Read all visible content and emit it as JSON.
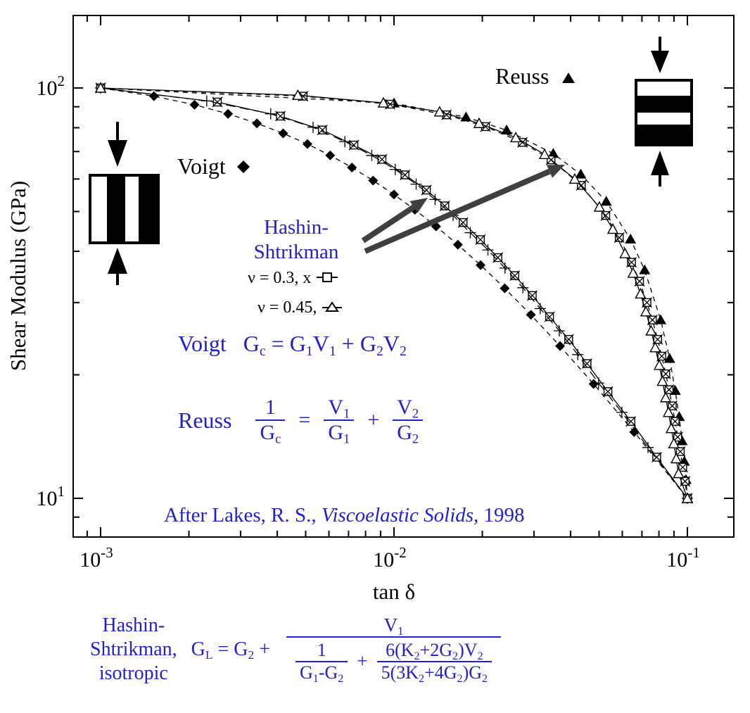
{
  "chart_data": {
    "type": "line",
    "title": "",
    "xlabel": "tan δ",
    "ylabel": "Shear Modulus (GPa)",
    "x_scale": "log",
    "y_scale": "log",
    "xlim": [
      0.0008,
      0.144
    ],
    "ylim": [
      8.1,
      151
    ],
    "grid": false,
    "x_ticks": [
      {
        "value": 0.001,
        "base": "10",
        "exp": "-3"
      },
      {
        "value": 0.01,
        "base": "10",
        "exp": "-2"
      },
      {
        "value": 0.1,
        "base": "10",
        "exp": "-1"
      }
    ],
    "y_ticks": [
      {
        "value": 100,
        "base": "10",
        "exp": "2"
      },
      {
        "value": 10,
        "base": "10",
        "exp": "1"
      }
    ],
    "series": [
      {
        "name": "voigt",
        "label": "Voigt",
        "marker": "filled-diamond",
        "line": "dash",
        "color": "#000000",
        "points": [
          [
            0.001,
            100
          ],
          [
            0.00152,
            95.5
          ],
          [
            0.00209,
            91
          ],
          [
            0.00272,
            86.5
          ],
          [
            0.00341,
            82
          ],
          [
            0.00419,
            77.5
          ],
          [
            0.00507,
            73
          ],
          [
            0.00606,
            68.5
          ],
          [
            0.00719,
            64
          ],
          [
            0.00849,
            59.5
          ],
          [
            0.01,
            55
          ],
          [
            0.01178,
            50.5
          ],
          [
            0.01391,
            46
          ],
          [
            0.01651,
            41.5
          ],
          [
            0.01973,
            37
          ],
          [
            0.02385,
            32.5
          ],
          [
            0.02929,
            28
          ],
          [
            0.03681,
            23.5
          ],
          [
            0.04789,
            19
          ],
          [
            0.06586,
            14.5
          ],
          [
            0.1,
            10
          ]
        ]
      },
      {
        "name": "reuss",
        "label": "Reuss",
        "marker": "filled-triangle",
        "line": "dash",
        "color": "#000000",
        "points": [
          [
            0.001,
            100
          ],
          [
            0.01,
            91.8
          ],
          [
            0.0176,
            84.9
          ],
          [
            0.0242,
            78.9
          ],
          [
            0.0349,
            69.2
          ],
          [
            0.0433,
            61.6
          ],
          [
            0.0529,
            52.9
          ],
          [
            0.064,
            42.8
          ],
          [
            0.0715,
            36
          ],
          [
            0.0811,
            27.2
          ],
          [
            0.087,
            21.9
          ],
          [
            0.0909,
            18.3
          ],
          [
            0.0938,
            15.8
          ],
          [
            0.0959,
            13.8
          ],
          [
            0.0976,
            12.3
          ],
          [
            0.0989,
            11.1
          ],
          [
            0.1,
            10
          ]
        ]
      },
      {
        "name": "hs_upper_nu03",
        "label": "Hashin-Shtrikman upper, ν = 0.3",
        "marker": "x-square",
        "line": "solid",
        "color": "#000000",
        "points": [
          [
            0.001,
            100
          ],
          [
            0.0025,
            92.4
          ],
          [
            0.0041,
            85.4
          ],
          [
            0.0057,
            79
          ],
          [
            0.0073,
            72.6
          ],
          [
            0.0091,
            67
          ],
          [
            0.0109,
            61.4
          ],
          [
            0.0129,
            56.4
          ],
          [
            0.0149,
            51.6
          ],
          [
            0.0172,
            47
          ],
          [
            0.0197,
            42.7
          ],
          [
            0.0226,
            38.6
          ],
          [
            0.0258,
            34.9
          ],
          [
            0.0296,
            31.2
          ],
          [
            0.0339,
            27.7
          ],
          [
            0.0394,
            24.4
          ],
          [
            0.0455,
            21.3
          ],
          [
            0.0536,
            18.2
          ],
          [
            0.0642,
            15.4
          ],
          [
            0.0786,
            12.6
          ],
          [
            0.1,
            10
          ]
        ]
      },
      {
        "name": "hs_upper_nu045",
        "label": "Hashin-Shtrikman upper, ν = 0.45",
        "marker": "plus",
        "line": "longdash",
        "color": "#000000",
        "points": [
          [
            0.001,
            100
          ],
          [
            0.0023,
            93
          ],
          [
            0.0038,
            86.5
          ],
          [
            0.0053,
            80.2
          ],
          [
            0.0068,
            74
          ],
          [
            0.0084,
            68.5
          ],
          [
            0.0101,
            63.3
          ],
          [
            0.0119,
            58.3
          ],
          [
            0.0138,
            53.5
          ],
          [
            0.0159,
            48.9
          ],
          [
            0.0182,
            44.4
          ],
          [
            0.0209,
            40.3
          ],
          [
            0.0239,
            36.4
          ],
          [
            0.0275,
            32.6
          ],
          [
            0.0315,
            29
          ],
          [
            0.0366,
            25.6
          ],
          [
            0.0423,
            22.4
          ],
          [
            0.0498,
            19.1
          ],
          [
            0.0598,
            16.2
          ],
          [
            0.0734,
            13.3
          ],
          [
            0.1,
            10
          ]
        ]
      },
      {
        "name": "hs_lower_nu03",
        "label": "Hashin-Shtrikman lower, ν = 0.3",
        "marker": "x-square",
        "line": "dash",
        "color": "#000000",
        "points": [
          [
            0.001,
            100
          ],
          [
            0.0049,
            95.5
          ],
          [
            0.0097,
            91.3
          ],
          [
            0.0151,
            86
          ],
          [
            0.0205,
            80.5
          ],
          [
            0.0274,
            73.7
          ],
          [
            0.0343,
            66.8
          ],
          [
            0.0435,
            57.9
          ],
          [
            0.0527,
            48.9
          ],
          [
            0.0586,
            43.2
          ],
          [
            0.0645,
            37.6
          ],
          [
            0.0687,
            33.8
          ],
          [
            0.0728,
            30
          ],
          [
            0.076,
            27.2
          ],
          [
            0.0792,
            24.4
          ],
          [
            0.0818,
            22.2
          ],
          [
            0.0844,
            20.1
          ],
          [
            0.0866,
            18.4
          ],
          [
            0.0888,
            16.8
          ],
          [
            0.0908,
            15.4
          ],
          [
            0.0927,
            14.1
          ],
          [
            0.0946,
            13
          ],
          [
            0.0964,
            11.9
          ],
          [
            0.0982,
            11
          ],
          [
            0.1,
            10
          ]
        ]
      },
      {
        "name": "hs_lower_nu045",
        "label": "Hashin-Shtrikman lower, ν = 0.45",
        "marker": "open-triangle",
        "line": "solid",
        "color": "#000000",
        "points": [
          [
            0.001,
            100
          ],
          [
            0.0047,
            96
          ],
          [
            0.0092,
            92
          ],
          [
            0.0143,
            87.5
          ],
          [
            0.0195,
            82
          ],
          [
            0.026,
            75.7
          ],
          [
            0.0326,
            68.9
          ],
          [
            0.0413,
            60
          ],
          [
            0.0501,
            51.3
          ],
          [
            0.0557,
            45.3
          ],
          [
            0.0613,
            39.5
          ],
          [
            0.0653,
            35.4
          ],
          [
            0.0692,
            31.5
          ],
          [
            0.0722,
            28.5
          ],
          [
            0.0752,
            25.6
          ],
          [
            0.0777,
            23.3
          ],
          [
            0.0802,
            21.1
          ],
          [
            0.0822,
            19.3
          ],
          [
            0.0843,
            17.6
          ],
          [
            0.0862,
            16.2
          ],
          [
            0.0881,
            14.8
          ],
          [
            0.0899,
            13.6
          ],
          [
            0.0916,
            12.5
          ],
          [
            0.0933,
            11.5
          ],
          [
            0.1,
            10
          ]
        ]
      }
    ]
  },
  "annotations": {
    "voigt_label": {
      "text": "Voigt",
      "marker": "filled-diamond"
    },
    "reuss_label": {
      "text": "Reuss",
      "marker": "filled-triangle"
    },
    "hs_label": {
      "line1": "Hashin-",
      "line2": "Shtrikman"
    },
    "legend": [
      {
        "text": "ν = 0.3, x",
        "marker": "square-on-line"
      },
      {
        "text": "ν = 0.45,",
        "marker": "triangle-on-line"
      }
    ],
    "hs_arrows": [
      {
        "from": [
          516,
          342
        ],
        "to": [
          608,
          281
        ]
      },
      {
        "from": [
          519,
          357
        ],
        "to": [
          803,
          234
        ]
      }
    ],
    "diagrams": {
      "voigt_composite": {
        "stripes": "vertical",
        "arrows": "top-down, bottom-up"
      },
      "reuss_composite": {
        "stripes": "horizontal",
        "arrows": "top-down, bottom-up"
      }
    }
  },
  "formulas": {
    "voigt": {
      "label": "Voigt",
      "body_html": "G<sub>c</sub> = G<sub>1</sub>V<sub>1</sub> + G<sub>2</sub>V<sub>2</sub>"
    },
    "reuss": {
      "label": "Reuss",
      "lhs_num": "1",
      "lhs_den": "G<sub>c</sub>",
      "eq": "=",
      "num2": "V<sub>1</sub>",
      "den2": "G<sub>1</sub>",
      "plus": "+",
      "num3": "V<sub>2</sub>",
      "den3": "G<sub>2</sub>"
    },
    "hs_isotropic": {
      "label_line1": "Hashin-",
      "label_line2": "Shtrikman,",
      "label_line3": "isotropic",
      "lhs_html": "G<sub>L</sub> = G<sub>2</sub> +",
      "big_num_html": "V<sub>1</sub>",
      "inner_num1": "1",
      "inner_den1_html": "G<sub>1</sub>-G<sub>2</sub>",
      "plus": "+",
      "inner_num2_html": "6(K<sub>2</sub>+2G<sub>2</sub>)V<sub>2</sub>",
      "inner_den2_html": "5(3K<sub>2</sub>+4G<sub>2</sub>)G<sub>2</sub>"
    }
  },
  "citation_html": "After Lakes, R. S., <i>Viscoelastic Solids</i>, 1998",
  "colors": {
    "formula_blue": "#2121cc",
    "curve_black": "#000000",
    "arrow_gray": "#3f3f3f"
  }
}
